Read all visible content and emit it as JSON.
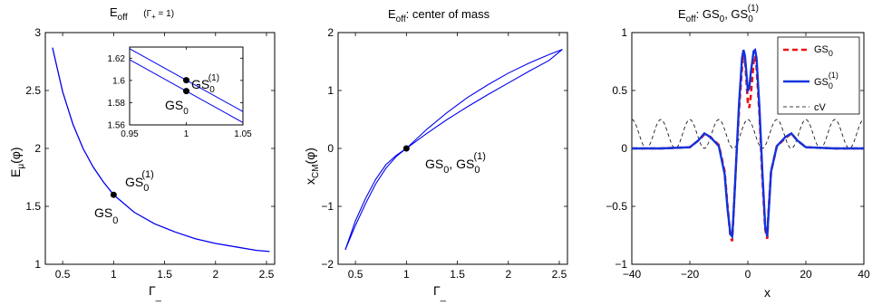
{
  "colors": {
    "curve": "#0000ee",
    "gs0": "#ee1111",
    "gs01": "#1133dd",
    "cv": "#000000"
  },
  "chart_data": [
    {
      "type": "line",
      "title": "E",
      "title_sub": "off",
      "title_note": "(Γ",
      "title_note_sub": "+",
      "title_note_end": " = 1)",
      "xlabel": "Γ",
      "xlabel_sub": "_",
      "ylabel": "E",
      "ylabel_sub": "μ",
      "ylabel_end": "(φ)",
      "xlim": [
        0.33,
        2.58
      ],
      "ylim": [
        1,
        3
      ],
      "xticks": [
        "0.5",
        "1",
        "1.5",
        "2",
        "2.5"
      ],
      "xtick_values": [
        0.5,
        1,
        1.5,
        2,
        2.5
      ],
      "yticks": [
        "1",
        "1.5",
        "2",
        "2.5",
        "3"
      ],
      "ytick_values": [
        1,
        1.5,
        2,
        2.5,
        3
      ],
      "curve": {
        "x": [
          0.4,
          0.5,
          0.6,
          0.7,
          0.8,
          0.9,
          1.0,
          1.2,
          1.4,
          1.6,
          1.8,
          2.0,
          2.2,
          2.4,
          2.53
        ],
        "y": [
          2.87,
          2.49,
          2.21,
          2.0,
          1.84,
          1.71,
          1.6,
          1.45,
          1.35,
          1.28,
          1.22,
          1.18,
          1.15,
          1.12,
          1.11
        ]
      },
      "points": [
        {
          "x": 1.0,
          "y": 1.6
        }
      ],
      "annotations": [
        {
          "text": "GS",
          "sub": "0",
          "sup": "(1)"
        },
        {
          "text": "GS",
          "sub": "0"
        }
      ],
      "inset": {
        "xlim": [
          0.95,
          1.05
        ],
        "ylim": [
          1.56,
          1.63
        ],
        "xticks": [
          "0.95",
          "1",
          "1.05"
        ],
        "xtick_values": [
          0.95,
          1,
          1.05
        ],
        "yticks": [
          "1.56",
          "1.58",
          "1.6",
          "1.62"
        ],
        "ytick_values": [
          1.56,
          1.58,
          1.6,
          1.62
        ],
        "lines": [
          {
            "x": [
              0.95,
              1.05
            ],
            "y": [
              1.6285,
              1.572
            ]
          },
          {
            "x": [
              0.95,
              1.05
            ],
            "y": [
              1.6187,
              1.5621
            ]
          }
        ],
        "points": [
          {
            "x": 1.0,
            "y": 1.6002
          },
          {
            "x": 1.0,
            "y": 1.5904
          }
        ],
        "annotations": [
          {
            "text": "GS",
            "sub": "0",
            "sup": "(1)"
          },
          {
            "text": "GS",
            "sub": "0"
          }
        ]
      }
    },
    {
      "type": "line",
      "title": "E",
      "title_sub": "off",
      "title_end": ":  center of mass",
      "xlabel": "Γ",
      "xlabel_sub": "_",
      "ylabel": "x",
      "ylabel_sub": "CM",
      "ylabel_end": "(φ)",
      "xlim": [
        0.33,
        2.58
      ],
      "ylim": [
        -2,
        2
      ],
      "xticks": [
        "0.5",
        "1",
        "1.5",
        "2",
        "2.5"
      ],
      "xtick_values": [
        0.5,
        1,
        1.5,
        2,
        2.5
      ],
      "yticks": [
        "−2",
        "−1",
        "0",
        "1",
        "2"
      ],
      "ytick_values": [
        -2,
        -1,
        0,
        1,
        2
      ],
      "series": [
        {
          "x": [
            0.4,
            0.5,
            0.6,
            0.7,
            0.8,
            0.9,
            1.0,
            1.2,
            1.4,
            1.6,
            1.8,
            2.0,
            2.2,
            2.4,
            2.53
          ],
          "y": [
            -1.75,
            -1.33,
            -0.95,
            -0.61,
            -0.34,
            -0.14,
            0.0,
            0.26,
            0.5,
            0.72,
            0.93,
            1.13,
            1.33,
            1.52,
            1.71
          ]
        },
        {
          "x": [
            0.4,
            0.5,
            0.6,
            0.7,
            0.8,
            0.9,
            1.0,
            1.2,
            1.4,
            1.6,
            1.8,
            2.0,
            2.2,
            2.4,
            2.53
          ],
          "y": [
            -1.75,
            -1.25,
            -0.86,
            -0.53,
            -0.28,
            -0.12,
            0.0,
            0.33,
            0.62,
            0.88,
            1.1,
            1.3,
            1.47,
            1.62,
            1.71
          ]
        }
      ],
      "points": [
        {
          "x": 1.0,
          "y": 0.0
        }
      ],
      "annotations": [
        {
          "text": "GS",
          "sub": "0",
          "mid": ", GS",
          "sub2": "0",
          "sup2": "(1)"
        }
      ]
    },
    {
      "type": "line",
      "title": "E",
      "title_sub": "off",
      "title_end": ":  GS",
      "title_sub2": "0",
      "title_mid": ", GS",
      "title_sub3": "0",
      "title_sup3": "(1)",
      "xlabel": "x",
      "xlim": [
        -40,
        40
      ],
      "ylim": [
        -1,
        1
      ],
      "xticks": [
        "−40",
        "−20",
        "0",
        "20",
        "40"
      ],
      "xtick_values": [
        -40,
        -20,
        0,
        20,
        40
      ],
      "yticks": [
        "−1",
        "−0.5",
        "0",
        "0.5",
        "1"
      ],
      "ytick_values": [
        -1,
        -0.5,
        0,
        0.5,
        1
      ],
      "legend_position": "top-right",
      "series": [
        {
          "name": "GS",
          "name_sub": "0",
          "style": "dashed-red",
          "x": [
            -40,
            -30,
            -20,
            -17,
            -15,
            -13,
            -10,
            -8,
            -7,
            -6,
            -5.4,
            -5,
            -4,
            -3,
            -2,
            -1.5,
            -1,
            0,
            0.5,
            1,
            2,
            2.5,
            3,
            4,
            5,
            6,
            6.7,
            7,
            8,
            10,
            13,
            15,
            17,
            20,
            30,
            40
          ],
          "y": [
            0,
            0,
            0.01,
            0.07,
            0.12,
            0.1,
            0.03,
            -0.2,
            -0.5,
            -0.76,
            -0.8,
            -0.6,
            -0.1,
            0.35,
            0.7,
            0.82,
            0.78,
            0.4,
            0.35,
            0.45,
            0.75,
            0.8,
            0.7,
            0.3,
            -0.25,
            -0.7,
            -0.78,
            -0.6,
            -0.2,
            0.02,
            0.09,
            0.13,
            0.07,
            0.01,
            0,
            0
          ]
        },
        {
          "name": "GS",
          "name_sub": "0",
          "name_sup": "(1)",
          "style": "solid-blue",
          "x": [
            -40,
            -30,
            -20,
            -17,
            -15,
            -13,
            -10,
            -8,
            -7,
            -6,
            -5.4,
            -5,
            -4,
            -3,
            -2,
            -1.5,
            -1,
            0,
            0.5,
            1,
            2,
            2.5,
            3,
            4,
            5,
            6,
            6.7,
            7,
            8,
            10,
            13,
            15,
            17,
            20,
            30,
            40
          ],
          "y": [
            0,
            0,
            0.01,
            0.07,
            0.13,
            0.1,
            0.02,
            -0.22,
            -0.52,
            -0.74,
            -0.76,
            -0.6,
            -0.1,
            0.4,
            0.78,
            0.85,
            0.8,
            0.5,
            0.52,
            0.65,
            0.84,
            0.85,
            0.78,
            0.35,
            -0.2,
            -0.68,
            -0.76,
            -0.62,
            -0.2,
            0.02,
            0.1,
            0.13,
            0.07,
            0.01,
            0,
            0
          ]
        },
        {
          "name": "cV",
          "style": "dashed-thin-black",
          "function": "0.125*(1+cos(2*pi*x/10))"
        }
      ]
    }
  ]
}
